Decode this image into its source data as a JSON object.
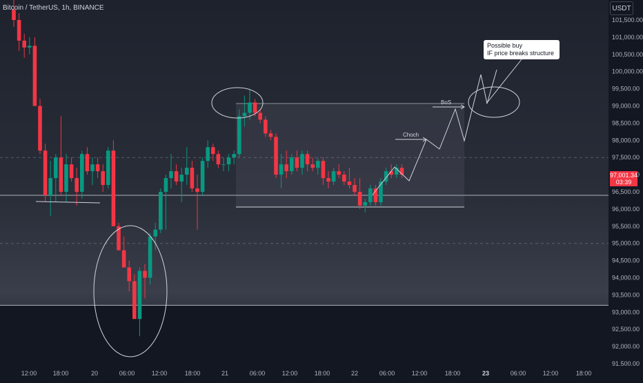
{
  "header": {
    "symbol": "Bitcoin / TetherUS, 1h, BINANCE",
    "currency": "USDT"
  },
  "price_badge": {
    "price": "97,001.34",
    "countdown": "03:39"
  },
  "annotations": {
    "callout_line1": "Possible buy",
    "callout_line2": "IF price breaks structure",
    "choch": "Choch",
    "bos": "BoS"
  },
  "colors": {
    "background": "#131722",
    "up": "#089981",
    "down": "#f23645",
    "grid": "#2a2e39",
    "axis_text": "#b2b5be",
    "drawing": "#d1d4dc"
  },
  "chart_data": {
    "type": "candlestick",
    "title": "Bitcoin / TetherUS, 1h, BINANCE",
    "ylim": [
      91500,
      102100
    ],
    "y_ticks": [
      "101,500.00",
      "101,000.00",
      "100,500.00",
      "100,000.00",
      "99,500.00",
      "99,000.00",
      "98,500.00",
      "98,000.00",
      "97,500.00",
      "97,000.00",
      "96,500.00",
      "96,000.00",
      "95,500.00",
      "95,000.00",
      "94,500.00",
      "94,000.00",
      "93,500.00",
      "93,000.00",
      "92,500.00",
      "92,000.00",
      "91,500.00"
    ],
    "x_ticks": [
      "12:00",
      "18:00",
      "20",
      "06:00",
      "12:00",
      "18:00",
      "21",
      "06:00",
      "12:00",
      "18:00",
      "22",
      "06:00",
      "12:00",
      "18:00",
      "23",
      "06:00",
      "12:00",
      "18:00"
    ],
    "candles": [
      {
        "o": 101800,
        "h": 102100,
        "l": 101300,
        "c": 101500
      },
      {
        "o": 101500,
        "h": 101700,
        "l": 100600,
        "c": 100900
      },
      {
        "o": 100900,
        "h": 101100,
        "l": 100400,
        "c": 100700
      },
      {
        "o": 100700,
        "h": 101000,
        "l": 100500,
        "c": 100750
      },
      {
        "o": 100750,
        "h": 101000,
        "l": 99000,
        "c": 99000
      },
      {
        "o": 99000,
        "h": 99200,
        "l": 97600,
        "c": 97700
      },
      {
        "o": 97700,
        "h": 97900,
        "l": 96200,
        "c": 96400
      },
      {
        "o": 96400,
        "h": 97400,
        "l": 95800,
        "c": 96900
      },
      {
        "o": 96900,
        "h": 97600,
        "l": 96200,
        "c": 97500
      },
      {
        "o": 97500,
        "h": 98700,
        "l": 96400,
        "c": 96500
      },
      {
        "o": 96500,
        "h": 97600,
        "l": 96200,
        "c": 97300
      },
      {
        "o": 97300,
        "h": 97500,
        "l": 96800,
        "c": 96900
      },
      {
        "o": 96900,
        "h": 97200,
        "l": 96100,
        "c": 96500
      },
      {
        "o": 96500,
        "h": 97700,
        "l": 96300,
        "c": 97600
      },
      {
        "o": 97600,
        "h": 97800,
        "l": 97000,
        "c": 97100
      },
      {
        "o": 97100,
        "h": 97500,
        "l": 96700,
        "c": 97300
      },
      {
        "o": 97300,
        "h": 97500,
        "l": 96900,
        "c": 97100
      },
      {
        "o": 97100,
        "h": 97300,
        "l": 96500,
        "c": 96700
      },
      {
        "o": 96700,
        "h": 97800,
        "l": 96600,
        "c": 97700
      },
      {
        "o": 97700,
        "h": 98000,
        "l": 95500,
        "c": 95500
      },
      {
        "o": 95500,
        "h": 95600,
        "l": 94800,
        "c": 94800
      },
      {
        "o": 94800,
        "h": 95200,
        "l": 94300,
        "c": 94300
      },
      {
        "o": 94300,
        "h": 94500,
        "l": 93600,
        "c": 93900
      },
      {
        "o": 93900,
        "h": 94100,
        "l": 92800,
        "c": 92800
      },
      {
        "o": 92800,
        "h": 94300,
        "l": 92300,
        "c": 94200
      },
      {
        "o": 94200,
        "h": 94400,
        "l": 93400,
        "c": 94000
      },
      {
        "o": 94000,
        "h": 95300,
        "l": 93800,
        "c": 95200
      },
      {
        "o": 95200,
        "h": 95600,
        "l": 94800,
        "c": 95400
      },
      {
        "o": 95400,
        "h": 96600,
        "l": 95300,
        "c": 96500
      },
      {
        "o": 96500,
        "h": 97000,
        "l": 95400,
        "c": 96900
      },
      {
        "o": 96900,
        "h": 97600,
        "l": 96600,
        "c": 97100
      },
      {
        "o": 97100,
        "h": 97300,
        "l": 96700,
        "c": 96800
      },
      {
        "o": 96800,
        "h": 97200,
        "l": 96200,
        "c": 97000
      },
      {
        "o": 97000,
        "h": 97800,
        "l": 96700,
        "c": 97200
      },
      {
        "o": 97200,
        "h": 97400,
        "l": 96500,
        "c": 96600
      },
      {
        "o": 96600,
        "h": 97000,
        "l": 95400,
        "c": 96500
      },
      {
        "o": 96500,
        "h": 97500,
        "l": 96400,
        "c": 97400
      },
      {
        "o": 97400,
        "h": 98000,
        "l": 97200,
        "c": 97800
      },
      {
        "o": 97800,
        "h": 97900,
        "l": 97400,
        "c": 97600
      },
      {
        "o": 97600,
        "h": 97700,
        "l": 97200,
        "c": 97300
      },
      {
        "o": 97300,
        "h": 97500,
        "l": 97100,
        "c": 97300
      },
      {
        "o": 97300,
        "h": 97600,
        "l": 97100,
        "c": 97500
      },
      {
        "o": 97500,
        "h": 97700,
        "l": 97300,
        "c": 97600
      },
      {
        "o": 97600,
        "h": 98900,
        "l": 97500,
        "c": 98700
      },
      {
        "o": 98700,
        "h": 99300,
        "l": 98400,
        "c": 98800
      },
      {
        "o": 98800,
        "h": 99500,
        "l": 98600,
        "c": 99100
      },
      {
        "o": 99100,
        "h": 99200,
        "l": 98700,
        "c": 98800
      },
      {
        "o": 98800,
        "h": 98900,
        "l": 98500,
        "c": 98600
      },
      {
        "o": 98600,
        "h": 98700,
        "l": 98100,
        "c": 98200
      },
      {
        "o": 98200,
        "h": 98300,
        "l": 98000,
        "c": 98100
      },
      {
        "o": 98100,
        "h": 98200,
        "l": 96900,
        "c": 97000
      },
      {
        "o": 97000,
        "h": 97600,
        "l": 96600,
        "c": 97300
      },
      {
        "o": 97300,
        "h": 97700,
        "l": 96900,
        "c": 97100
      },
      {
        "o": 97100,
        "h": 97600,
        "l": 97000,
        "c": 97500
      },
      {
        "o": 97500,
        "h": 97700,
        "l": 97100,
        "c": 97200
      },
      {
        "o": 97200,
        "h": 97700,
        "l": 97000,
        "c": 97600
      },
      {
        "o": 97600,
        "h": 97700,
        "l": 97100,
        "c": 97300
      },
      {
        "o": 97300,
        "h": 97500,
        "l": 97100,
        "c": 97200
      },
      {
        "o": 97200,
        "h": 97500,
        "l": 97000,
        "c": 97400
      },
      {
        "o": 97400,
        "h": 97500,
        "l": 96700,
        "c": 96900
      },
      {
        "o": 96900,
        "h": 97100,
        "l": 96600,
        "c": 96800
      },
      {
        "o": 96800,
        "h": 97200,
        "l": 96700,
        "c": 97100
      },
      {
        "o": 97100,
        "h": 97300,
        "l": 96900,
        "c": 97000
      },
      {
        "o": 97000,
        "h": 97100,
        "l": 96700,
        "c": 96800
      },
      {
        "o": 96800,
        "h": 97200,
        "l": 96600,
        "c": 96700
      },
      {
        "o": 96700,
        "h": 96900,
        "l": 96400,
        "c": 96500
      },
      {
        "o": 96500,
        "h": 96900,
        "l": 96000,
        "c": 96100
      },
      {
        "o": 96100,
        "h": 96300,
        "l": 95900,
        "c": 96200
      },
      {
        "o": 96200,
        "h": 96700,
        "l": 96100,
        "c": 96600
      },
      {
        "o": 96600,
        "h": 96700,
        "l": 96100,
        "c": 96200
      },
      {
        "o": 96200,
        "h": 96900,
        "l": 96100,
        "c": 96800
      },
      {
        "o": 96800,
        "h": 97200,
        "l": 96700,
        "c": 97100
      },
      {
        "o": 97100,
        "h": 97300,
        "l": 96900,
        "c": 97000
      },
      {
        "o": 97000,
        "h": 97300,
        "l": 96900,
        "c": 97200
      },
      {
        "o": 97200,
        "h": 97300,
        "l": 96900,
        "c": 97000
      }
    ],
    "levels": [
      96400,
      93200
    ],
    "dashed_levels": [
      95000,
      97500
    ]
  }
}
